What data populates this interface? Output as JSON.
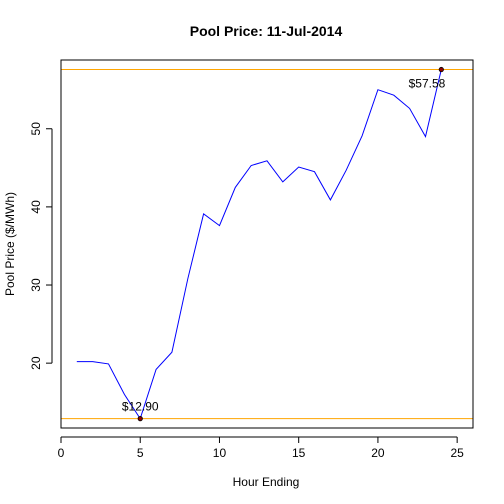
{
  "chart_data": {
    "type": "line",
    "title": "Pool Price: 11-Jul-2014",
    "xlabel": "Hour Ending",
    "ylabel": "Pool Price ($/MWh)",
    "xlim": [
      0,
      26
    ],
    "ylim": [
      11.7,
      58.8
    ],
    "x_ticks": [
      0,
      5,
      10,
      15,
      20,
      25
    ],
    "y_ticks": [
      20,
      30,
      40,
      50
    ],
    "series": [
      {
        "color": "#0000ff",
        "x": [
          1,
          2,
          3,
          4,
          5,
          6,
          7,
          8,
          9,
          10,
          11,
          12,
          13,
          14,
          15,
          16,
          17,
          18,
          19,
          20,
          21,
          22,
          23,
          24
        ],
        "y": [
          20.2,
          20.2,
          19.9,
          16.0,
          12.9,
          19.2,
          21.4,
          30.8,
          39.1,
          37.6,
          42.5,
          45.3,
          45.9,
          43.2,
          45.1,
          44.5,
          40.9,
          44.7,
          49.1,
          55.0,
          54.3,
          52.6,
          49.0,
          57.58
        ]
      }
    ],
    "reference_lines": [
      {
        "y": 57.58,
        "color": "#ffa500"
      },
      {
        "y": 12.9,
        "color": "#ffa500"
      }
    ],
    "annotations": [
      {
        "x": 24,
        "y": 57.58,
        "text": "$57.58"
      },
      {
        "x": 5,
        "y": 12.9,
        "text": "$12.90"
      }
    ]
  }
}
